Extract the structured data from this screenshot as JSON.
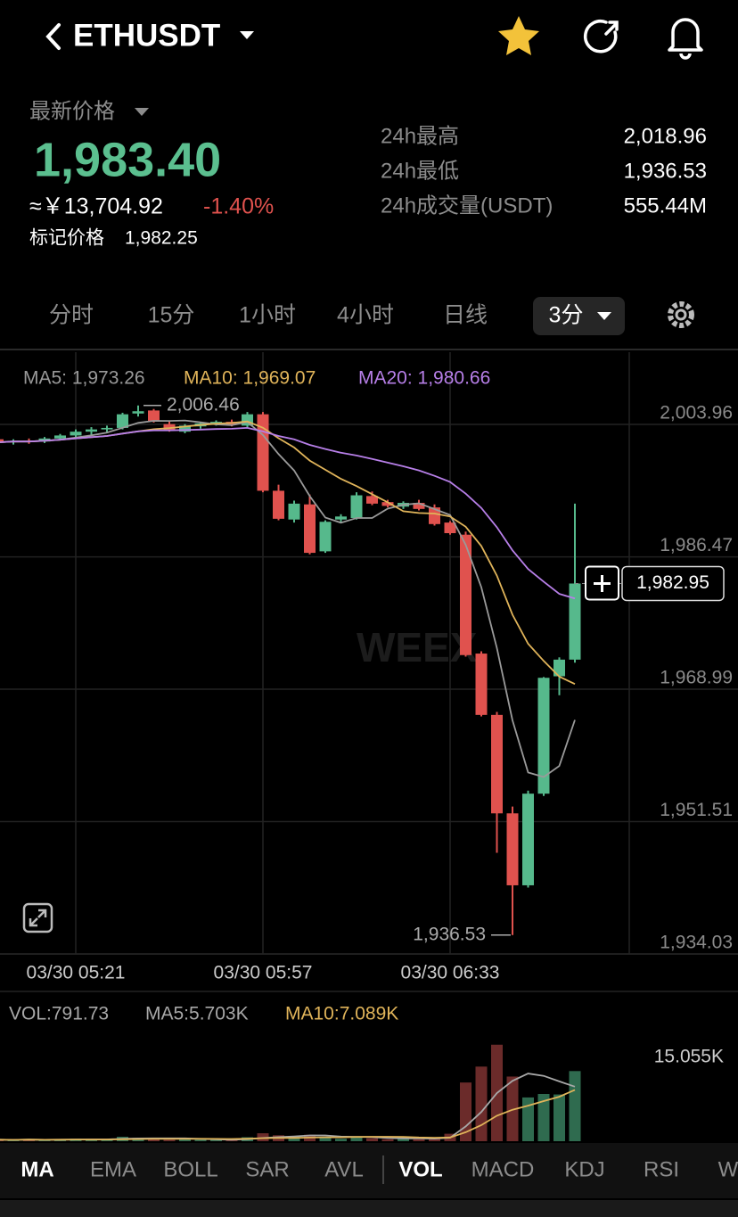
{
  "header": {
    "symbol": "ETHUSDT"
  },
  "ticker": {
    "price_label": "最新价格",
    "last_price": "1,983.40",
    "cny_price": "≈￥13,704.92",
    "change": "-1.40%",
    "mark_label": "标记价格",
    "mark_price": "1,982.25"
  },
  "stats": [
    [
      "24h最高",
      "2,018.96"
    ],
    [
      "24h最低",
      "1,936.53"
    ],
    [
      "24h成交量(USDT)",
      "555.44M"
    ]
  ],
  "intervals": [
    "分时",
    "15分",
    "1小时",
    "4小时",
    "日线"
  ],
  "active_interval": "3分",
  "indicator_tabs": [
    "MA",
    "EMA",
    "BOLL",
    "SAR",
    "AVL",
    "VOL",
    "MACD",
    "KDJ",
    "RSI",
    "W"
  ],
  "chart_data": [
    {
      "type": "candlestick",
      "watermark": "WEEX",
      "legend": [
        {
          "label": "MA5: 1,973.26",
          "color": "#9a9a9a",
          "period": 5
        },
        {
          "label": "MA10: 1,969.07",
          "color": "#e0b45a",
          "period": 10
        },
        {
          "label": "MA20: 1,980.66",
          "color": "#b77fe8",
          "period": 20
        }
      ],
      "categories": [
        null,
        null,
        null,
        null,
        null,
        "03/30 05:21",
        null,
        null,
        null,
        null,
        null,
        null,
        null,
        null,
        null,
        null,
        null,
        "03/30 05:57",
        null,
        null,
        null,
        null,
        null,
        null,
        null,
        null,
        null,
        null,
        null,
        "03/30 06:33",
        null,
        null,
        null,
        null,
        null,
        null,
        null,
        null
      ],
      "open": [
        2002.0,
        2001.6,
        2001.8,
        2001.7,
        2002.1,
        2002.5,
        2003.0,
        2003.3,
        2003.5,
        2005.4,
        2005.8,
        2004.0,
        2003.0,
        2003.7,
        2004.0,
        2004.3,
        2003.8,
        2005.3,
        1995.2,
        1991.4,
        1993.4,
        1987.2,
        1991.4,
        1991.6,
        1994.5,
        1993.7,
        1993.1,
        1993.6,
        1993.0,
        1991.0,
        1989.4,
        1973.7,
        1965.6,
        1952.6,
        1943.1,
        1955.2,
        1970.7,
        1972.9
      ],
      "high": [
        2002.2,
        2002.0,
        2002.1,
        2002.3,
        2002.7,
        2003.3,
        2003.6,
        2003.8,
        2005.5,
        2006.46,
        2006.0,
        2004.4,
        2004.0,
        2004.3,
        2004.5,
        2004.6,
        2005.6,
        2005.6,
        1996.0,
        1993.9,
        1994.7,
        1991.3,
        1992.1,
        1995.0,
        1995.1,
        1994.0,
        1993.8,
        1994.0,
        1993.4,
        1991.2,
        1989.8,
        1974.0,
        1966.0,
        1953.5,
        1955.6,
        1970.6,
        1973.2,
        1993.5
      ],
      "low": [
        2001.4,
        2001.3,
        2001.4,
        2001.5,
        2001.9,
        2002.3,
        2002.6,
        2002.9,
        2003.3,
        2005.0,
        2004.2,
        2003.0,
        2002.8,
        2003.4,
        2003.8,
        2003.7,
        2003.6,
        1995.0,
        1991.3,
        1991.0,
        1986.8,
        1987.0,
        1991.0,
        1991.4,
        1993.3,
        1993.0,
        1992.8,
        1992.6,
        1990.6,
        1989.4,
        1973.3,
        1965.4,
        1947.4,
        1936.53,
        1942.8,
        1954.9,
        1968.2,
        1972.5
      ],
      "close": [
        2001.6,
        2001.8,
        2001.7,
        2002.1,
        2002.5,
        2003.0,
        2003.3,
        2003.5,
        2005.3,
        2005.7,
        2004.4,
        2003.2,
        2003.8,
        2004.1,
        2004.3,
        2003.9,
        2005.3,
        1995.2,
        1991.5,
        1993.5,
        1987.0,
        1991.1,
        1991.8,
        1994.6,
        1993.5,
        1993.2,
        1993.6,
        1992.8,
        1990.8,
        1989.6,
        1973.5,
        1965.6,
        1952.6,
        1943.1,
        1955.2,
        1970.5,
        1972.9,
        1982.95
      ],
      "up_color": "#56b98c",
      "down_color": "#e0524e",
      "ylim": [
        1934.03,
        2013.5
      ],
      "yticks": [
        {
          "value": 2003.96,
          "label": "2,003.96"
        },
        {
          "value": 1986.47,
          "label": "1,986.47"
        },
        {
          "value": 1968.99,
          "label": "1,968.99"
        },
        {
          "value": 1951.51,
          "label": "1,951.51"
        },
        {
          "value": 1934.03,
          "label": "1,934.03"
        }
      ],
      "high_label": "2,006.46",
      "low_label": "1,936.53",
      "current_price": {
        "value": 1982.95,
        "label": "1,982.95"
      }
    },
    {
      "type": "bar",
      "legend": [
        {
          "label": "VOL:791.73",
          "color": "#a8a8a8"
        },
        {
          "label": "MA5:5.703K",
          "color": "#a8a8a8",
          "period": 5
        },
        {
          "label": "MA10:7.089K",
          "color": "#e0b45a",
          "period": 10
        }
      ],
      "values": [
        300,
        250,
        400,
        200,
        350,
        500,
        300,
        400,
        900,
        700,
        600,
        300,
        400,
        300,
        250,
        300,
        800,
        1600,
        1200,
        900,
        1300,
        800,
        500,
        900,
        600,
        400,
        500,
        400,
        700,
        1500,
        11800,
        15000,
        19400,
        13000,
        8800,
        9500,
        9400,
        14100
      ],
      "ylim": [
        0,
        23300
      ],
      "yticks": [
        {
          "value": 15055,
          "label": "15.055K"
        }
      ]
    }
  ]
}
